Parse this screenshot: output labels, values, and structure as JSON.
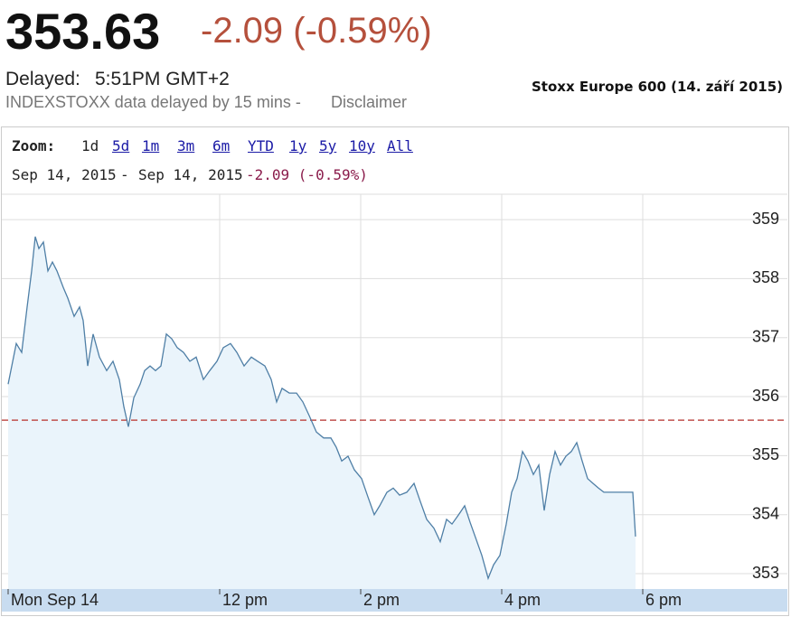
{
  "header": {
    "price": "353.63",
    "change": "-2.09 (-0.59%)",
    "delayed_label": "Delayed:",
    "delayed_time": "5:51PM GMT+2",
    "note": "INDEXSTOXX data delayed by 15 mins -",
    "disclaimer": "Disclaimer"
  },
  "toolbar": {
    "zoom_label": "Zoom:",
    "zoom_options": [
      "1d",
      "5d",
      "1m",
      "3m",
      "6m",
      "YTD",
      "1y",
      "5y",
      "10y",
      "All"
    ],
    "date_from": "Sep 14, 2015",
    "date_separator": "-",
    "date_to": "Sep 14, 2015",
    "range_change": "-2.09 (-0.59%)"
  },
  "chart_data": {
    "type": "line",
    "title": "Stoxx Europe 600 (14. září 2015)",
    "x": [
      9,
      9.038,
      9.115,
      9.192,
      9.269,
      9.333,
      9.385,
      9.436,
      9.5,
      9.564,
      9.628,
      9.692,
      9.782,
      9.846,
      9.936,
      10.013,
      10.064,
      10.128,
      10.205,
      10.295,
      10.397,
      10.487,
      10.577,
      10.641,
      10.705,
      10.782,
      10.872,
      10.936,
      11.013,
      11.09,
      11.167,
      11.244,
      11.321,
      11.397,
      11.487,
      11.577,
      11.667,
      11.769,
      11.859,
      11.962,
      12.051,
      12.154,
      12.244,
      12.346,
      12.449,
      12.538,
      12.641,
      12.731,
      12.808,
      12.885,
      12.987,
      13.09,
      13.179,
      13.269,
      13.372,
      13.474,
      13.577,
      13.654,
      13.731,
      13.821,
      13.91,
      14.013,
      14.103,
      14.192,
      14.269,
      14.372,
      14.462,
      14.551,
      14.654,
      14.756,
      14.846,
      14.936,
      15.038,
      15.128,
      15.218,
      15.295,
      15.385,
      15.474,
      15.551,
      15.641,
      15.718,
      15.808,
      15.885,
      15.974,
      16.064,
      16.141,
      16.218,
      16.295,
      16.372,
      16.449,
      16.526,
      16.603,
      16.679,
      16.756,
      16.833,
      16.91,
      16.987,
      17.064,
      17.141,
      17.218,
      17.295,
      17.372,
      17.449,
      17.526,
      17.679,
      17.859,
      17.897
    ],
    "values": [
      356.21,
      356.44,
      356.9,
      356.75,
      357.52,
      358.13,
      358.71,
      358.51,
      358.62,
      358.13,
      358.28,
      358.13,
      357.85,
      357.67,
      357.36,
      357.52,
      357.29,
      356.52,
      357.06,
      356.67,
      356.44,
      356.6,
      356.29,
      355.83,
      355.49,
      355.98,
      356.21,
      356.44,
      356.52,
      356.44,
      356.52,
      357.06,
      356.98,
      356.83,
      356.75,
      356.6,
      356.67,
      356.29,
      356.44,
      356.6,
      356.83,
      356.9,
      356.75,
      356.52,
      356.67,
      356.6,
      356.52,
      356.29,
      355.91,
      356.14,
      356.06,
      356.06,
      355.91,
      355.68,
      355.4,
      355.3,
      355.3,
      355.14,
      354.91,
      354.99,
      354.76,
      354.61,
      354.3,
      354,
      354.15,
      354.38,
      354.45,
      354.33,
      354.38,
      354.53,
      354.22,
      353.92,
      353.77,
      353.54,
      353.92,
      353.84,
      353.99,
      354.15,
      353.87,
      353.57,
      353.31,
      352.92,
      353.15,
      353.31,
      353.84,
      354.38,
      354.61,
      355.07,
      354.91,
      354.68,
      354.84,
      354.07,
      354.68,
      355.07,
      354.84,
      354.99,
      355.07,
      355.22,
      354.91,
      354.61,
      354.53,
      354.45,
      354.38,
      354.38,
      354.38,
      354.38,
      353.63
    ],
    "color": "#4f7fa6",
    "fill_color": "#eaf4fb",
    "reference_line": 355.6,
    "reference_color": "#c0504d",
    "xlim": [
      9,
      20
    ],
    "xticks": [
      {
        "value": 9,
        "label": "Mon Sep 14"
      },
      {
        "value": 12,
        "label": "12 pm"
      },
      {
        "value": 14,
        "label": "2 pm"
      },
      {
        "value": 16,
        "label": "4 pm"
      },
      {
        "value": 18,
        "label": "6 pm"
      }
    ],
    "ylim": [
      352.74,
      359.43
    ],
    "yticks": [
      353,
      354,
      355,
      356,
      357,
      358,
      359
    ],
    "grid": true
  }
}
